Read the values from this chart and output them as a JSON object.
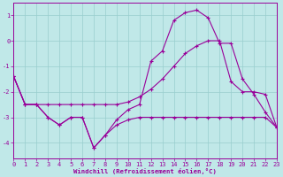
{
  "xlabel": "Windchill (Refroidissement éolien,°C)",
  "xlim": [
    0,
    23
  ],
  "ylim": [
    -4.6,
    1.5
  ],
  "yticks": [
    1,
    0,
    -1,
    -2,
    -3,
    -4
  ],
  "xticks": [
    0,
    1,
    2,
    3,
    4,
    5,
    6,
    7,
    8,
    9,
    10,
    11,
    12,
    13,
    14,
    15,
    16,
    17,
    18,
    19,
    20,
    21,
    22,
    23
  ],
  "bg": "#c0e8e8",
  "grid_color": "#98cece",
  "lc": "#990099",
  "line1_x": [
    0,
    1,
    2,
    3,
    4,
    5,
    6,
    7,
    8,
    9,
    10,
    11,
    12,
    13,
    14,
    15,
    16,
    17,
    18,
    19,
    20,
    21,
    22,
    23
  ],
  "line1_y": [
    -1.4,
    -2.5,
    -2.5,
    -3.0,
    -3.3,
    -3.0,
    -3.0,
    -4.2,
    -3.7,
    -3.3,
    -3.1,
    -3.0,
    -3.0,
    -3.0,
    -3.0,
    -3.0,
    -3.0,
    -3.0,
    -3.0,
    -3.0,
    -3.0,
    -3.0,
    -3.0,
    -3.4
  ],
  "line2_x": [
    0,
    1,
    2,
    3,
    4,
    5,
    6,
    7,
    8,
    9,
    10,
    11,
    12,
    13,
    14,
    15,
    16,
    17,
    18,
    19,
    20,
    21,
    22,
    23
  ],
  "line2_y": [
    -1.4,
    -2.5,
    -2.5,
    -2.5,
    -2.5,
    -2.5,
    -2.5,
    -2.5,
    -2.5,
    -2.5,
    -2.4,
    -2.2,
    -1.9,
    -1.5,
    -1.0,
    -0.5,
    -0.2,
    0.0,
    0.0,
    -1.6,
    -2.0,
    -2.0,
    -2.1,
    -3.4
  ],
  "line3_x": [
    0,
    1,
    2,
    3,
    4,
    5,
    6,
    7,
    8,
    9,
    10,
    11,
    12,
    13,
    14,
    15,
    16,
    17,
    18,
    19,
    20,
    21,
    22,
    23
  ],
  "line3_y": [
    -1.4,
    -2.5,
    -2.5,
    -3.0,
    -3.3,
    -3.0,
    -3.0,
    -4.2,
    -3.7,
    -3.1,
    -2.7,
    -2.5,
    -0.8,
    -0.4,
    0.8,
    1.1,
    1.2,
    0.9,
    -0.1,
    -0.1,
    -1.5,
    -2.1,
    -2.8,
    -3.4
  ]
}
